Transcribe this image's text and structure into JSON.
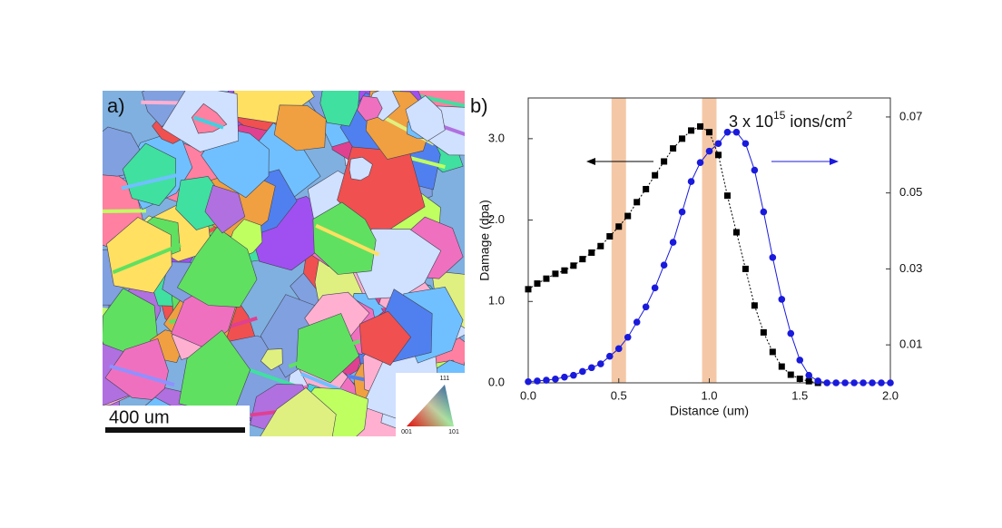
{
  "panel_a": {
    "label": "a)",
    "scale_bar": "400 um",
    "ipf_labels": [
      "111",
      "001",
      "101"
    ]
  },
  "chart_data": {
    "type": "line",
    "panel_label": "b)",
    "annotation": {
      "text": "3 x 10",
      "sup": "15",
      "unit": " ions/cm",
      "unit_sup": "2"
    },
    "xlabel": "Distance (um)",
    "ylabel": "Damage (dpa)",
    "xlim": [
      0,
      2
    ],
    "xticks": [
      {
        "value": 0,
        "label": "0.0"
      },
      {
        "value": 0.5,
        "label": "0.5"
      },
      {
        "value": 1,
        "label": "1.0"
      },
      {
        "value": 1.5,
        "label": "1.5"
      },
      {
        "value": 2,
        "label": "2.0"
      }
    ],
    "ylim": [
      0,
      3.5
    ],
    "yticks": [
      {
        "value": 0,
        "label": "0.0"
      },
      {
        "value": 1,
        "label": "1.0"
      },
      {
        "value": 2,
        "label": "2.0"
      },
      {
        "value": 3,
        "label": "3.0"
      }
    ],
    "y2lim": [
      0,
      0.075
    ],
    "y2ticks": [
      0.01,
      0.03,
      0.05,
      0.07
    ],
    "shaded_regions": [
      [
        0.46,
        0.54
      ],
      [
        0.96,
        1.04
      ]
    ],
    "x": [
      0,
      0.05,
      0.1,
      0.15,
      0.2,
      0.25,
      0.3,
      0.35,
      0.4,
      0.45,
      0.5,
      0.55,
      0.6,
      0.65,
      0.7,
      0.75,
      0.8,
      0.85,
      0.9,
      0.95,
      1,
      1.05,
      1.1,
      1.15,
      1.2,
      1.25,
      1.3,
      1.35,
      1.4,
      1.45,
      1.5,
      1.55,
      1.6,
      1.65,
      1.7,
      1.75,
      1.8,
      1.85,
      1.9,
      1.95,
      2
    ],
    "series": [
      {
        "color": "#000000",
        "marker": "square",
        "values": [
          1.15,
          1.22,
          1.28,
          1.34,
          1.38,
          1.44,
          1.52,
          1.6,
          1.68,
          1.8,
          1.92,
          2.05,
          2.22,
          2.38,
          2.55,
          2.72,
          2.88,
          3.0,
          3.1,
          3.15,
          3.08,
          2.8,
          2.3,
          1.85,
          1.4,
          0.95,
          0.62,
          0.38,
          0.2,
          0.1,
          0.05,
          0.02,
          0,
          null,
          null,
          null,
          null,
          null,
          null,
          null,
          null
        ]
      },
      {
        "color": "#1a1adc",
        "marker": "circle",
        "axis": "y2",
        "values": [
          0.0003,
          0.0005,
          0.0007,
          0.001,
          0.0015,
          0.002,
          0.003,
          0.004,
          0.005,
          0.007,
          0.009,
          0.012,
          0.016,
          0.02,
          0.025,
          0.031,
          0.037,
          0.045,
          0.053,
          0.058,
          0.061,
          0.063,
          0.066,
          0.066,
          0.063,
          0.056,
          0.045,
          0.033,
          0.022,
          0.013,
          0.006,
          0.002,
          0.0005,
          0,
          0,
          0,
          0,
          0,
          0,
          0,
          0
        ]
      }
    ]
  }
}
